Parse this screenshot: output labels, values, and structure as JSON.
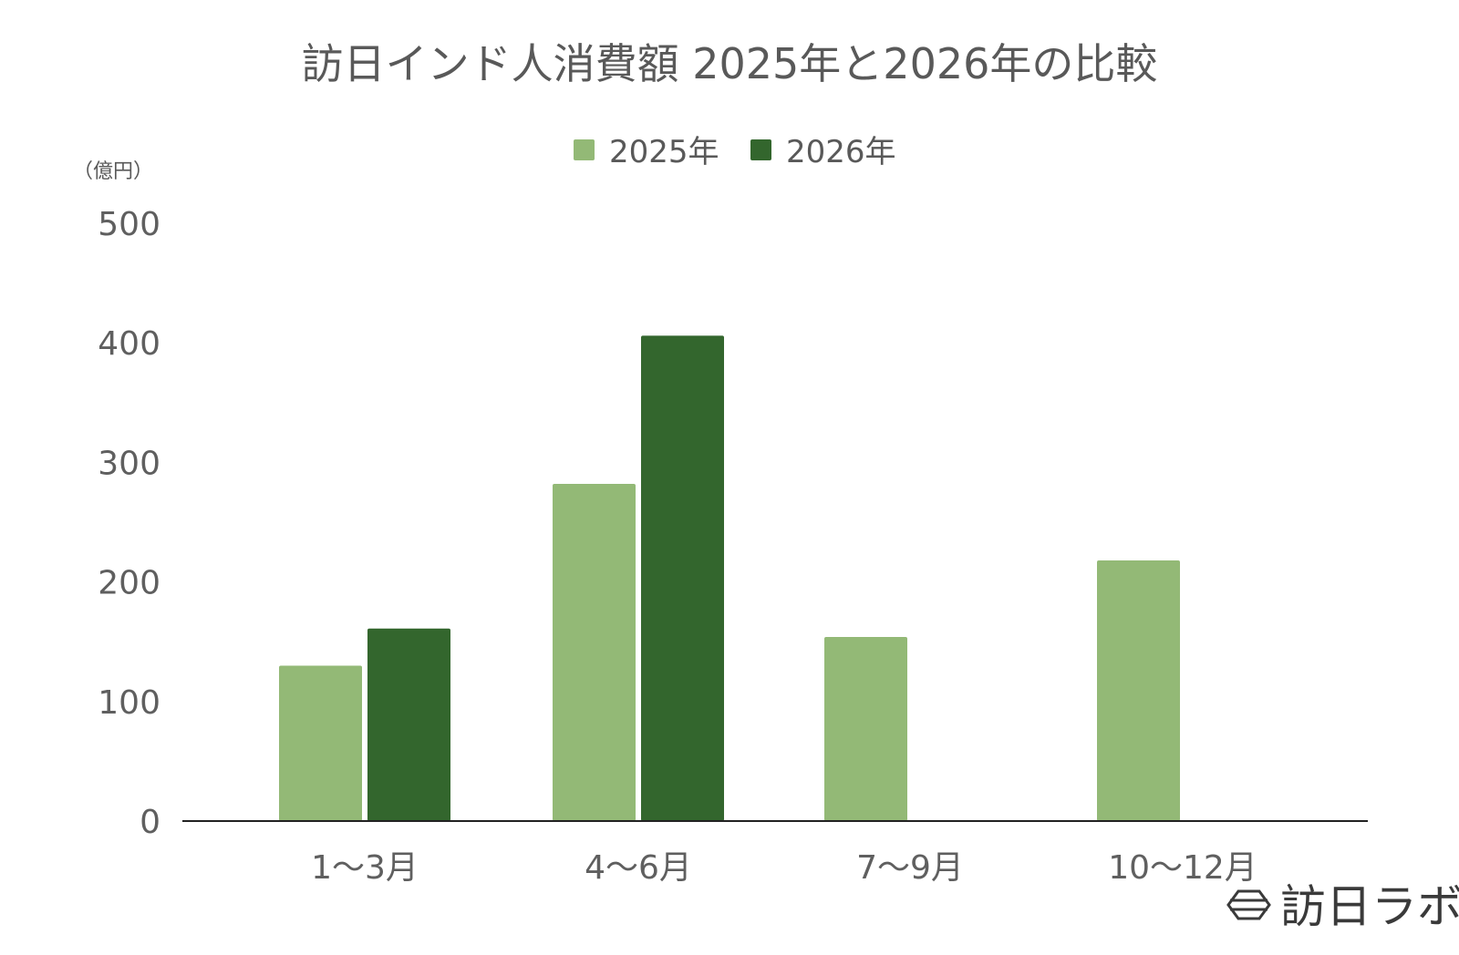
{
  "chart_data": {
    "type": "bar",
    "title": "訪日インド人消費額 2025年と2026年の比較",
    "unit_label": "（億円）",
    "categories": [
      "1〜3月",
      "4〜6月",
      "7〜9月",
      "10〜12月"
    ],
    "series": [
      {
        "name": "2025年",
        "color": "#93b976",
        "values": [
          130,
          282,
          154,
          218
        ]
      },
      {
        "name": "2026年",
        "color": "#33662d",
        "values": [
          161,
          406,
          null,
          null
        ]
      }
    ],
    "ylim": [
      0,
      500
    ],
    "yticks": [
      "0",
      "100",
      "200",
      "300",
      "400",
      "500"
    ],
    "grid": false,
    "legend_position": "top"
  },
  "brand": {
    "name": "訪日ラボ",
    "icon": "hexagon-logo-icon"
  }
}
